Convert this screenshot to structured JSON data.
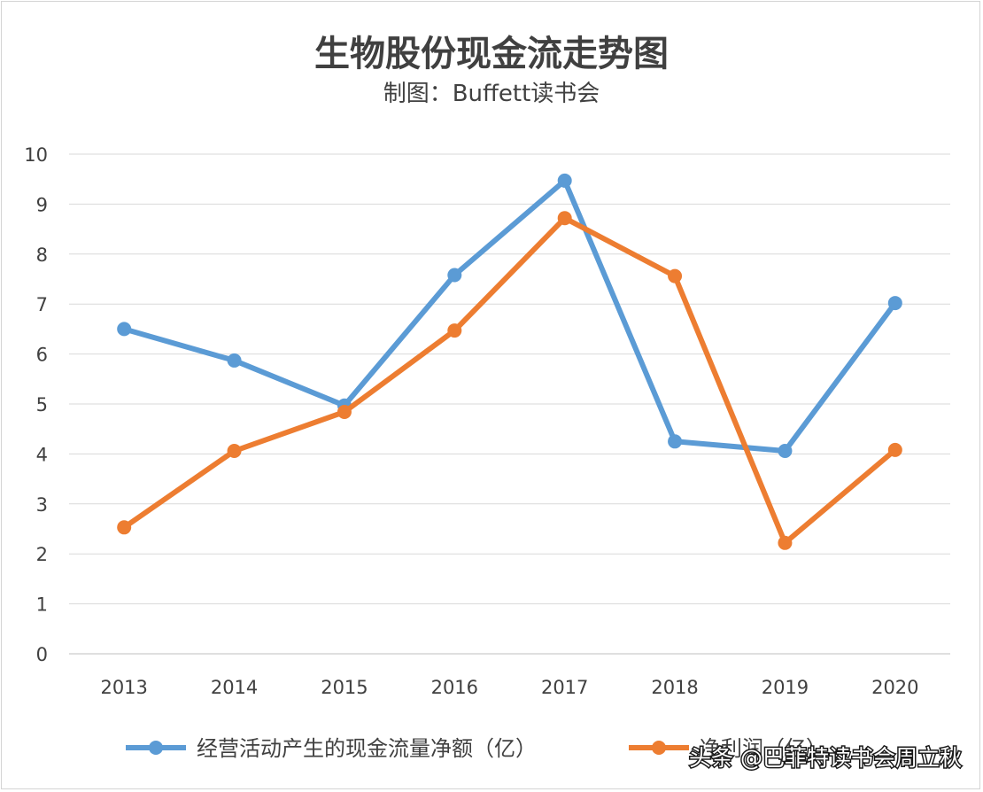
{
  "chart_data": {
    "type": "line",
    "title": "生物股份现金流走势图",
    "subtitle": "制图：Buffett读书会",
    "categories": [
      "2013",
      "2014",
      "2015",
      "2016",
      "2017",
      "2018",
      "2019",
      "2020"
    ],
    "series": [
      {
        "name": "经营活动产生的现金流量净额（亿）",
        "color": "#5b9bd5",
        "values": [
          6.5,
          5.87,
          4.97,
          7.58,
          9.47,
          4.25,
          4.06,
          7.02
        ]
      },
      {
        "name": "净利润（亿）",
        "color": "#ed7d31",
        "values": [
          2.53,
          4.06,
          4.84,
          6.47,
          8.72,
          7.56,
          2.22,
          4.08
        ]
      }
    ],
    "ylim": [
      0,
      10
    ],
    "yticks": [
      "0",
      "1",
      "2",
      "3",
      "4",
      "5",
      "6",
      "7",
      "8",
      "9",
      "10"
    ],
    "grid": true,
    "legend": "bottom"
  },
  "watermark": "头条 @巴菲特读书会周立秋"
}
